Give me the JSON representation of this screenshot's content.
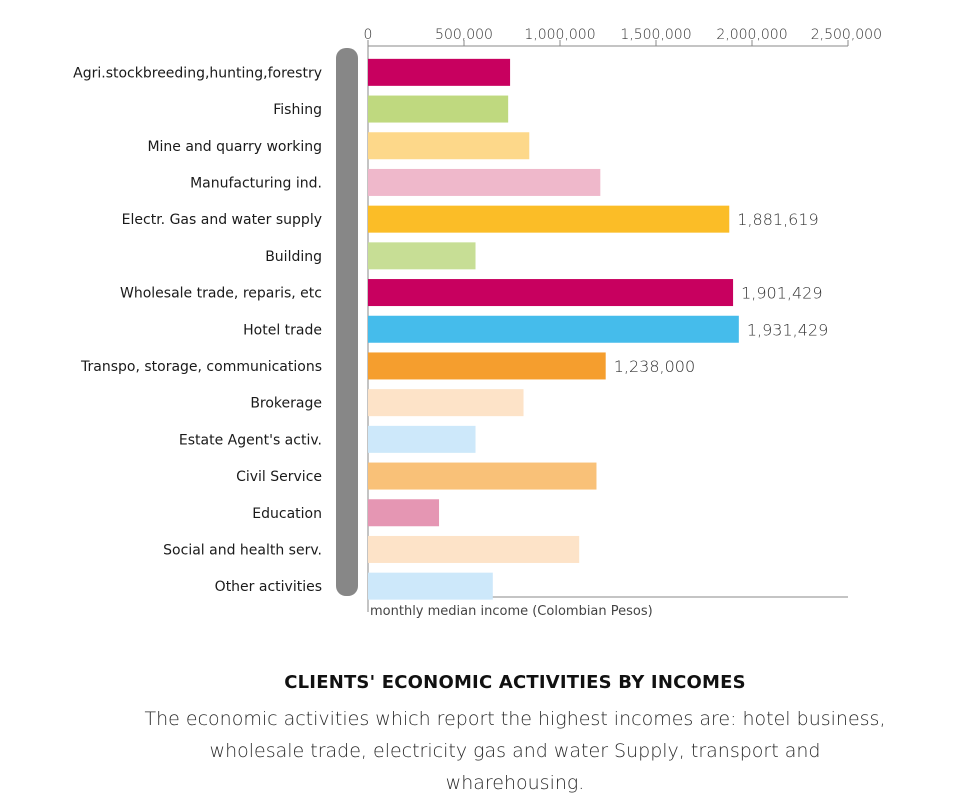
{
  "chart_data": {
    "type": "bar",
    "orientation": "horizontal",
    "title": "CLIENTS' ECONOMIC ACTIVITIES BY INCOMES",
    "subtitle": "The economic activities which report the highest incomes are: hotel business, wholesale trade, electricity gas and water Supply, transport and wharehousing.",
    "xlabel": "monthly median income (Colombian Pesos)",
    "ylabel": "",
    "xlim": [
      0,
      2500000
    ],
    "xticks": [
      {
        "value": 0,
        "label": "0"
      },
      {
        "value": 500000,
        "label": "500,000"
      },
      {
        "value": 1000000,
        "label": "1,000,000"
      },
      {
        "value": 1500000,
        "label": "1,500,000"
      },
      {
        "value": 2000000,
        "label": "2,000,000"
      },
      {
        "value": 2500000,
        "label": "2,500,000"
      }
    ],
    "grid": false,
    "bars": [
      {
        "category": "Agri.stockbreeding,hunting,forestry",
        "value": 740000,
        "color": "#C8005F",
        "label": ""
      },
      {
        "category": "Fishing",
        "value": 730000,
        "color": "#BFD97F",
        "label": ""
      },
      {
        "category": "Mine and quarry working",
        "value": 840000,
        "color": "#FDD88A",
        "label": ""
      },
      {
        "category": "Manufacturing ind.",
        "value": 1210000,
        "color": "#EFB8CB",
        "label": ""
      },
      {
        "category": "Electr. Gas and water supply",
        "value": 1881619,
        "color": "#FBBD27",
        "label": "1,881,619"
      },
      {
        "category": "Building",
        "value": 560000,
        "color": "#C7DE95",
        "label": ""
      },
      {
        "category": "Wholesale trade, reparis, etc",
        "value": 1901429,
        "color": "#C8005F",
        "label": "1,901,429"
      },
      {
        "category": "Hotel trade",
        "value": 1931429,
        "color": "#45BCEB",
        "label": "1,931,429"
      },
      {
        "category": "Transpo, storage, communications",
        "value": 1238000,
        "color": "#F59E2E",
        "label": "1,238,000"
      },
      {
        "category": "Brokerage",
        "value": 810000,
        "color": "#FDE3C8",
        "label": ""
      },
      {
        "category": "Estate Agent's activ.",
        "value": 560000,
        "color": "#CDE8FA",
        "label": ""
      },
      {
        "category": "Civil Service",
        "value": 1190000,
        "color": "#F9C178",
        "label": ""
      },
      {
        "category": "Education",
        "value": 370000,
        "color": "#E596B3",
        "label": ""
      },
      {
        "category": "Social and health serv.",
        "value": 1100000,
        "color": "#FDE3C8",
        "label": ""
      },
      {
        "category": "Other activities",
        "value": 650000,
        "color": "#CDE8FA",
        "label": ""
      }
    ],
    "colors": {
      "axis": "#888888",
      "side_band": "#878787"
    }
  }
}
